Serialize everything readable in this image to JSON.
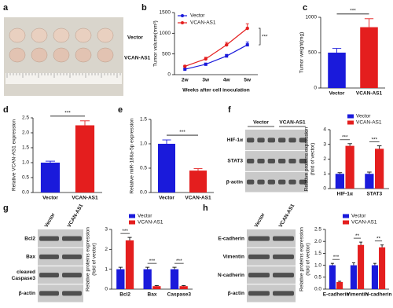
{
  "photo": {
    "letter": "a",
    "labels": [
      "Vector",
      "VCAN-AS1"
    ]
  },
  "blots": [
    {
      "letter": "f",
      "columns": [
        "Vector",
        "VCAN-AS1"
      ],
      "rows": [
        "HIF-1α",
        "STAT3",
        "β-actin"
      ]
    },
    {
      "letter": "g",
      "columns": [
        "Vector",
        "VCAN-AS1"
      ],
      "rows": [
        "Bcl2",
        "Bax",
        [
          "cleaved",
          "Caspase3"
        ],
        "β-actin"
      ]
    },
    {
      "letter": "h",
      "columns": [
        "Vector",
        "VCAN-AS1"
      ],
      "rows": [
        "E-cadherin",
        "Vimentin",
        "N-cadherin",
        "β-actin"
      ]
    }
  ],
  "chart_data": [
    {
      "type": "line",
      "panel": "b",
      "categories": [
        "2w",
        "3w",
        "4w",
        "5w"
      ],
      "xlabel": "Weeks after cell inoculation",
      "ylabel": "Tumor volume(mm³)",
      "ylim": [
        0,
        1500
      ],
      "yticks": [
        0,
        500,
        1000,
        1500
      ],
      "annotations": [
        "***"
      ],
      "series": [
        {
          "name": "Vector",
          "color": "#1a1adb",
          "values": [
            130,
            250,
            450,
            720
          ],
          "errors": [
            20,
            30,
            40,
            70
          ]
        },
        {
          "name": "VCAN-AS1",
          "color": "#e41e1e",
          "values": [
            200,
            380,
            720,
            1120
          ],
          "errors": [
            25,
            40,
            60,
            110
          ]
        }
      ]
    },
    {
      "type": "bar",
      "panel": "c",
      "categories": [
        "Vector",
        "VCAN-AS1"
      ],
      "values": [
        500,
        860
      ],
      "errors": [
        60,
        120
      ],
      "colors": [
        "#1a1adb",
        "#e41e1e"
      ],
      "ylabel": "Tumor weight(mg)",
      "ylim": [
        0,
        1000
      ],
      "yticks": [
        0,
        500,
        1000
      ],
      "annotations": [
        "***"
      ]
    },
    {
      "type": "bar",
      "panel": "d",
      "categories": [
        "Vector",
        "VCAN-AS1"
      ],
      "values": [
        1.0,
        2.25
      ],
      "errors": [
        0.05,
        0.15
      ],
      "colors": [
        "#1a1adb",
        "#e41e1e"
      ],
      "ylabel": "Relative VCAN-AS1 expression",
      "ylim": [
        0,
        2.5
      ],
      "yticks": [
        {
          "value": 0,
          "label": "0.0"
        },
        0.5,
        {
          "value": 1,
          "label": "1.0"
        },
        1.5,
        {
          "value": 2,
          "label": "2.0"
        },
        2.5
      ],
      "annotations": [
        "***"
      ]
    },
    {
      "type": "bar",
      "panel": "e",
      "categories": [
        "Vector",
        "VCAN-AS1"
      ],
      "values": [
        1.0,
        0.45
      ],
      "errors": [
        0.08,
        0.04
      ],
      "colors": [
        "#1a1adb",
        "#e41e1e"
      ],
      "ylabel": "Relative miR-186a-5p expression",
      "ylim": [
        0,
        1.5
      ],
      "yticks": [
        {
          "value": 0,
          "label": "0.0"
        },
        0.5,
        {
          "value": 1,
          "label": "1.0"
        },
        1.5
      ],
      "annotations": [
        "***"
      ]
    },
    {
      "type": "bar",
      "categories": [
        "HIF-1α",
        "STAT3"
      ],
      "ylabel": [
        "Relative proteins expression",
        "(fold of vector)"
      ],
      "ylim": [
        0,
        4
      ],
      "yticks": [
        0,
        1,
        2,
        3,
        4
      ],
      "annotations": [
        "***",
        "***"
      ],
      "series": [
        {
          "name": "Vector",
          "color": "#1a1adb",
          "values": [
            1.0,
            1.0
          ],
          "errors": [
            0.08,
            0.12
          ]
        },
        {
          "name": "VCAN-AS1",
          "color": "#e41e1e",
          "values": [
            2.9,
            2.7
          ],
          "errors": [
            0.15,
            0.2
          ]
        }
      ]
    },
    {
      "type": "bar",
      "categories": [
        "Bcl2",
        "Bax",
        "Caspase3"
      ],
      "ylabel": [
        "Relative proteins expression",
        "(fold of vector)"
      ],
      "ylim": [
        0,
        3
      ],
      "yticks": [
        0,
        1,
        2,
        3
      ],
      "annotations": [
        "***",
        "***",
        "***"
      ],
      "series": [
        {
          "name": "Vector",
          "color": "#1a1adb",
          "values": [
            1.0,
            1.0,
            1.0
          ],
          "errors": [
            0.1,
            0.1,
            0.1
          ]
        },
        {
          "name": "VCAN-AS1",
          "color": "#e41e1e",
          "values": [
            2.45,
            0.15,
            0.15
          ],
          "errors": [
            0.15,
            0.03,
            0.03
          ]
        }
      ]
    },
    {
      "type": "bar",
      "categories": [
        "E-cadherin",
        "Vimentin",
        "N-cadherin"
      ],
      "ylabel": [
        "Relative proteins expression",
        "(fold of vector)"
      ],
      "ylim": [
        0,
        2.5
      ],
      "yticks": [
        {
          "value": 0,
          "label": "0.0"
        },
        0.5,
        {
          "value": 1,
          "label": "1.0"
        },
        1.5,
        {
          "value": 2,
          "label": "2.0"
        },
        2.5
      ],
      "annotations": [
        "***",
        "**",
        "**"
      ],
      "series": [
        {
          "name": "Vector",
          "color": "#1a1adb",
          "values": [
            1.0,
            1.0,
            1.0
          ],
          "errors": [
            0.08,
            0.1,
            0.08
          ]
        },
        {
          "name": "VCAN-AS1",
          "color": "#e41e1e",
          "values": [
            0.3,
            1.85,
            1.75
          ],
          "errors": [
            0.03,
            0.12,
            0.1
          ]
        }
      ]
    }
  ]
}
